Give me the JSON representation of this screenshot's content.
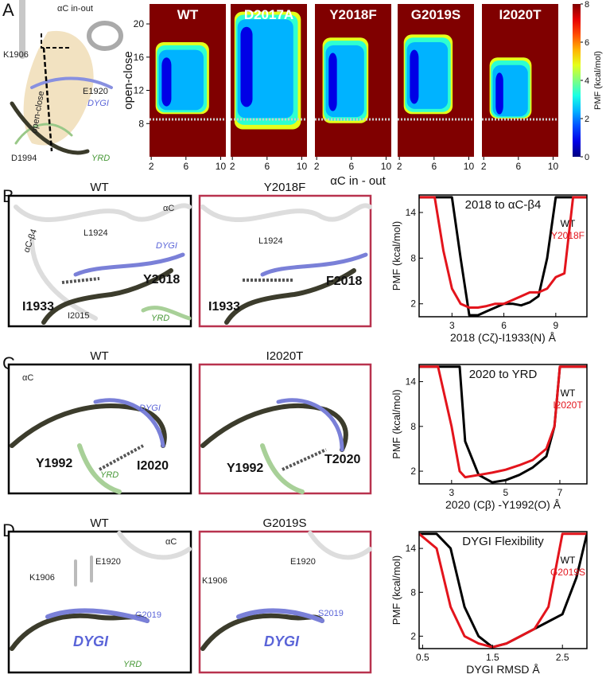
{
  "panel_labels": [
    "A",
    "B",
    "C",
    "D"
  ],
  "chart_data": [
    {
      "type": "heatmap",
      "panels": [
        {
          "title": "WT"
        },
        {
          "title": "D2017A"
        },
        {
          "title": "Y2018F"
        },
        {
          "title": "G2019S"
        },
        {
          "title": "I2020T"
        }
      ],
      "xlabel": "αC in - out",
      "ylabel": "open-close",
      "xlim": [
        1.8,
        10.6
      ],
      "ylim": [
        4,
        22.4
      ],
      "xticks": [
        2,
        6,
        10
      ],
      "yticks": [
        8,
        12,
        16,
        20
      ],
      "zlim": [
        0,
        8
      ],
      "zticks": [
        0,
        2,
        4,
        6,
        8
      ],
      "colorbar_label": "PMF (kcal/mol)",
      "colormap": "jet",
      "hline": 8.5
    },
    {
      "type": "line",
      "title": "2018 to αC-β4",
      "xlabel": "2018 (Cζ)-I1933(N) Å",
      "ylabel": "PMF (kcal/mol)",
      "x": [
        1.1,
        2,
        2.5,
        3,
        3.5,
        4,
        4.5,
        5,
        5.5,
        6,
        6.5,
        7,
        7.5,
        8,
        8.5,
        9,
        9.5,
        10,
        10.8
      ],
      "series": [
        {
          "name": "WT",
          "color": "#000000",
          "values": [
            16,
            16,
            16,
            16,
            8,
            0.5,
            0.5,
            1,
            1.5,
            2,
            2,
            1.8,
            2.2,
            3,
            8,
            16,
            16,
            16,
            16
          ]
        },
        {
          "name": "Y2018F",
          "color": "#e3141c",
          "values": [
            16,
            16,
            9,
            4,
            2,
            1.5,
            1.5,
            1.7,
            2,
            2,
            2.5,
            3,
            3.5,
            3.5,
            4,
            5.5,
            6,
            16,
            16
          ]
        }
      ],
      "xlim": [
        1.1,
        10.8
      ],
      "ylim": [
        0.3,
        16.3
      ],
      "xticks": [
        3,
        6,
        9
      ],
      "yticks": [
        2,
        8,
        14
      ]
    },
    {
      "type": "line",
      "title": "2020 to YRD",
      "xlabel": "2020 (Cβ) -Y1992(O) Å",
      "ylabel": "PMF (kcal/mol)",
      "x": [
        1.8,
        2.5,
        3,
        3.3,
        3.5,
        4,
        4.5,
        5,
        5.5,
        6,
        6.5,
        6.8,
        7,
        7.3,
        8
      ],
      "series": [
        {
          "name": "WT",
          "color": "#000000",
          "values": [
            16,
            16,
            16,
            16,
            6,
            1.5,
            0.5,
            0.8,
            1.5,
            2.5,
            4,
            8,
            16,
            16,
            16
          ]
        },
        {
          "name": "I2020T",
          "color": "#e3141c",
          "values": [
            16,
            16,
            8,
            2,
            1.2,
            1.5,
            1.8,
            2.2,
            2.8,
            3.5,
            5,
            8,
            16,
            16,
            16
          ]
        }
      ],
      "xlim": [
        1.8,
        8
      ],
      "ylim": [
        0.3,
        16.3
      ],
      "xticks": [
        3,
        5,
        7
      ],
      "yticks": [
        2,
        8,
        14
      ]
    },
    {
      "type": "line",
      "title": "DYGI Flexibility",
      "xlabel": "DYGI RMSD Å",
      "ylabel": "PMF (kcal/mol)",
      "x": [
        0.45,
        0.7,
        0.9,
        1.1,
        1.3,
        1.5,
        1.7,
        1.9,
        2.1,
        2.3,
        2.5,
        2.7,
        2.85
      ],
      "series": [
        {
          "name": "WT",
          "color": "#000000",
          "values": [
            16,
            16,
            14,
            6,
            2,
            0.5,
            1,
            2,
            3,
            4,
            5,
            10,
            16
          ]
        },
        {
          "name": "G2019S",
          "color": "#e3141c",
          "values": [
            16,
            14,
            6,
            2,
            1,
            0.5,
            1,
            2,
            3,
            6,
            16,
            16,
            16
          ]
        }
      ],
      "xlim": [
        0.45,
        2.85
      ],
      "ylim": [
        0.3,
        16.3
      ],
      "xticks": [
        0.5,
        1.5,
        2.5
      ],
      "yticks": [
        2,
        8,
        14
      ]
    }
  ],
  "structures": [
    {
      "labels": [
        "αC in-out",
        "K1906",
        "E1920",
        "DYGI",
        "open-close",
        "D1994",
        "YRD"
      ]
    },
    {
      "title": "WT",
      "labels": [
        "αC-β4",
        "L1924",
        "αC",
        "DYGI",
        "Y2018",
        "I1933",
        "I2015",
        "YRD"
      ]
    },
    {
      "title": "Y2018F",
      "labels": [
        "L1924",
        "F2018",
        "I1933"
      ]
    },
    {
      "title": "WT",
      "labels": [
        "αC",
        "DYGI",
        "Y1992",
        "I2020",
        "YRD"
      ]
    },
    {
      "title": "I2020T",
      "labels": [
        "Y1992",
        "T2020"
      ]
    },
    {
      "title": "WT",
      "labels": [
        "αC",
        "K1906",
        "E1920",
        "G2019",
        "DYGI",
        "YRD"
      ]
    },
    {
      "title": "G2019S",
      "labels": [
        "K1906",
        "E1920",
        "S2019",
        "DYGI"
      ]
    }
  ]
}
